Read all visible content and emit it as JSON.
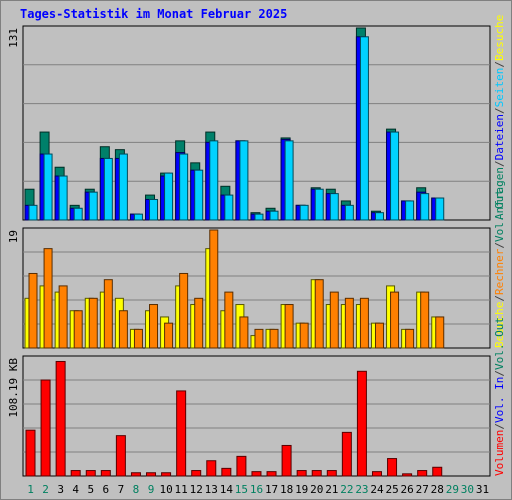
{
  "title": "Tages-Statistik im Monat Februar 2025",
  "chart_data": [
    {
      "type": "bar",
      "name": "top-panel",
      "max_label": "131",
      "ylim": [
        0,
        131
      ],
      "legend": [
        {
          "label": "Anfragen",
          "color": "#008060"
        },
        {
          "label": "/",
          "color": "#404040"
        },
        {
          "label": "Dateien",
          "color": "#0000ff"
        },
        {
          "label": "/",
          "color": "#404040"
        },
        {
          "label": "Seiten",
          "color": "#00c8ff"
        },
        {
          "label": "/",
          "color": "#404040"
        },
        {
          "label": "Besuche",
          "color": "#ffff00"
        }
      ],
      "series": [
        {
          "name": "Anfragen",
          "color": "#00806a",
          "values": [
            21,
            60,
            36,
            10,
            21,
            50,
            48,
            4,
            17,
            32,
            54,
            39,
            60,
            23,
            54,
            5,
            8,
            56,
            10,
            22,
            21,
            13,
            131,
            6,
            62,
            13,
            22,
            15,
            0,
            0,
            0
          ]
        },
        {
          "name": "Dateien",
          "color": "#0000ff",
          "values": [
            10,
            45,
            30,
            8,
            19,
            42,
            42,
            4,
            14,
            30,
            46,
            34,
            53,
            17,
            54,
            4,
            6,
            55,
            10,
            21,
            18,
            10,
            125,
            5,
            60,
            13,
            19,
            15,
            0,
            0,
            0
          ]
        },
        {
          "name": "Seiten",
          "color": "#00d2ff",
          "values": [
            10,
            45,
            30,
            8,
            19,
            42,
            45,
            4,
            14,
            32,
            45,
            34,
            54,
            17,
            54,
            4,
            6,
            54,
            10,
            21,
            18,
            10,
            125,
            5,
            60,
            13,
            18,
            15,
            0,
            0,
            0
          ]
        }
      ]
    },
    {
      "type": "bar",
      "name": "middle-panel",
      "max_label": "19",
      "ylim": [
        0,
        19
      ],
      "legend": [
        {
          "label": "Besuche",
          "color": "#ffff00"
        },
        {
          "label": "/",
          "color": "#404040"
        },
        {
          "label": "Rechner",
          "color": "#ff8000"
        },
        {
          "label": "/",
          "color": "#404040"
        },
        {
          "label": "Vol. Out",
          "color": "#008060"
        }
      ],
      "series": [
        {
          "name": "Besuche",
          "color": "#ffff00",
          "values": [
            8,
            10,
            9,
            6,
            8,
            9,
            8,
            3,
            6,
            5,
            10,
            7,
            16,
            6,
            7,
            2,
            3,
            7,
            4,
            11,
            7,
            7,
            7,
            4,
            10,
            3,
            9,
            5,
            0,
            0,
            0
          ]
        },
        {
          "name": "Rechner",
          "color": "#ff8000",
          "values": [
            12,
            16,
            10,
            6,
            8,
            11,
            6,
            3,
            7,
            4,
            12,
            8,
            19,
            9,
            5,
            3,
            3,
            7,
            4,
            11,
            9,
            8,
            8,
            4,
            9,
            3,
            9,
            5,
            0,
            0,
            0
          ]
        }
      ]
    },
    {
      "type": "bar",
      "name": "bottom-panel",
      "max_label": "108.19 KB",
      "ylim": [
        0,
        108.19
      ],
      "legend": [
        {
          "label": "Volumen",
          "color": "#ff0000"
        },
        {
          "label": "/",
          "color": "#404040"
        },
        {
          "label": "Vol. In",
          "color": "#0000ff"
        },
        {
          "label": "/",
          "color": "#404040"
        },
        {
          "label": "Vol. Out",
          "color": "#008060"
        }
      ],
      "series": [
        {
          "name": "Volumen",
          "color": "#ff0000",
          "values": [
            42,
            88,
            105,
            5,
            5,
            5,
            37,
            3,
            3,
            3,
            78,
            5,
            14,
            7,
            18,
            4,
            4,
            28,
            5,
            5,
            5,
            40,
            96,
            4,
            16,
            2,
            5,
            8,
            0,
            0,
            0
          ]
        }
      ]
    }
  ],
  "days": [
    {
      "label": "1",
      "color": "#008060"
    },
    {
      "label": "2",
      "color": "#008060"
    },
    {
      "label": "3",
      "color": "#000000"
    },
    {
      "label": "4",
      "color": "#000000"
    },
    {
      "label": "5",
      "color": "#000000"
    },
    {
      "label": "6",
      "color": "#000000"
    },
    {
      "label": "7",
      "color": "#000000"
    },
    {
      "label": "8",
      "color": "#008060"
    },
    {
      "label": "9",
      "color": "#008060"
    },
    {
      "label": "10",
      "color": "#000000"
    },
    {
      "label": "11",
      "color": "#000000"
    },
    {
      "label": "12",
      "color": "#000000"
    },
    {
      "label": "13",
      "color": "#000000"
    },
    {
      "label": "14",
      "color": "#000000"
    },
    {
      "label": "15",
      "color": "#008060"
    },
    {
      "label": "16",
      "color": "#008060"
    },
    {
      "label": "17",
      "color": "#000000"
    },
    {
      "label": "18",
      "color": "#000000"
    },
    {
      "label": "19",
      "color": "#000000"
    },
    {
      "label": "20",
      "color": "#000000"
    },
    {
      "label": "21",
      "color": "#000000"
    },
    {
      "label": "22",
      "color": "#008060"
    },
    {
      "label": "23",
      "color": "#008060"
    },
    {
      "label": "24",
      "color": "#000000"
    },
    {
      "label": "25",
      "color": "#000000"
    },
    {
      "label": "26",
      "color": "#000000"
    },
    {
      "label": "27",
      "color": "#000000"
    },
    {
      "label": "28",
      "color": "#000000"
    },
    {
      "label": "29",
      "color": "#008060"
    },
    {
      "label": "30",
      "color": "#008060"
    },
    {
      "label": "31",
      "color": "#000000"
    }
  ]
}
